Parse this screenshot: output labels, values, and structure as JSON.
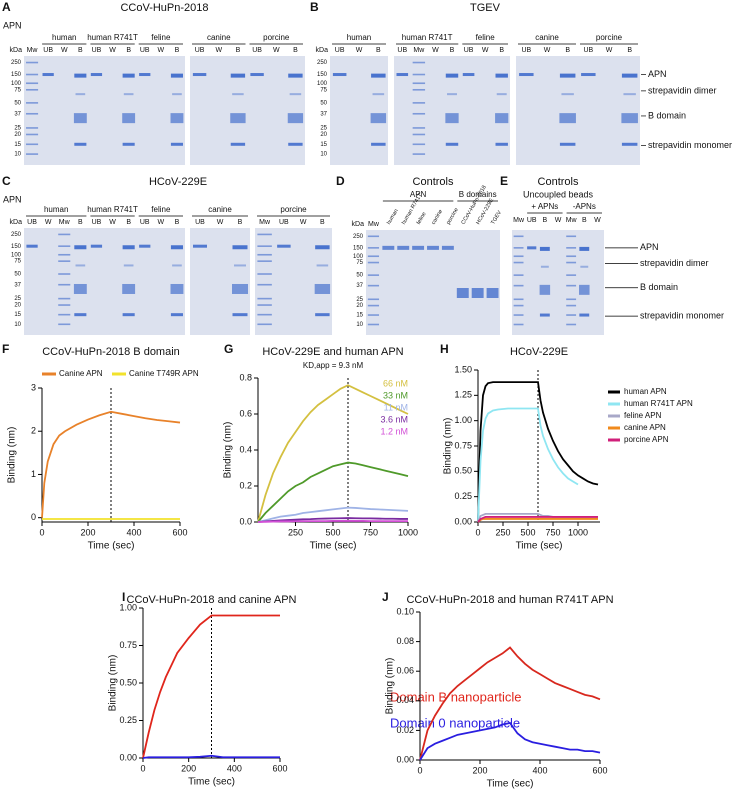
{
  "gels": [
    {
      "panel": "A",
      "title": "CCoV-HuPn-2018",
      "row_label": "APN",
      "unit": "kDa",
      "markers": [
        "250",
        "150",
        "100",
        "75",
        "50",
        "37",
        "25",
        "20",
        "15",
        "10"
      ],
      "blocks": [
        {
          "groups": [
            {
              "lanes": [
                "Mw"
              ]
            },
            {
              "label": "human",
              "lanes": [
                "UB",
                "W",
                "B"
              ]
            },
            {
              "label": "human R741T",
              "lanes": [
                "UB",
                "W",
                "B"
              ]
            },
            {
              "label": "feline",
              "lanes": [
                "UB",
                "W",
                "B"
              ]
            }
          ]
        },
        {
          "groups": [
            {
              "label": "canine",
              "lanes": [
                "UB",
                "W",
                "B"
              ]
            },
            {
              "label": "porcine",
              "lanes": [
                "UB",
                "W",
                "B"
              ]
            }
          ]
        }
      ]
    },
    {
      "panel": "B",
      "title": "TGEV",
      "unit": "kDa",
      "markers": [
        "250",
        "150",
        "100",
        "75",
        "50",
        "37",
        "25",
        "20",
        "15",
        "10"
      ],
      "blocks": [
        {
          "groups": [
            {
              "label": "human",
              "lanes": [
                "UB",
                "W",
                "B"
              ]
            }
          ]
        },
        {
          "groups": [
            {
              "label": "human R741T",
              "lanes": [
                "UB",
                "Mw",
                "W",
                "B"
              ]
            },
            {
              "label": "feline",
              "lanes": [
                "UB",
                "W",
                "B"
              ]
            }
          ]
        },
        {
          "groups": [
            {
              "label": "canine",
              "lanes": [
                "UB",
                "W",
                "B"
              ]
            },
            {
              "label": "porcine",
              "lanes": [
                "UB",
                "W",
                "B"
              ]
            }
          ]
        }
      ],
      "annotations": [
        "APN",
        "strepavidin dimer",
        "B domain",
        "strepavidin monomer"
      ]
    },
    {
      "panel": "C",
      "title": "HCoV-229E",
      "row_label": "APN",
      "unit": "kDa",
      "markers": [
        "250",
        "150",
        "100",
        "75",
        "50",
        "37",
        "25",
        "20",
        "15",
        "10"
      ],
      "blocks": [
        {
          "groups": [
            {
              "label": "human",
              "lanes": [
                "UB",
                "W",
                "Mw",
                "B"
              ]
            },
            {
              "label": "human R741T",
              "lanes": [
                "UB",
                "W",
                "B"
              ]
            },
            {
              "label": "feline",
              "lanes": [
                "UB",
                "W",
                "B"
              ]
            }
          ]
        },
        {
          "groups": [
            {
              "label": "canine",
              "lanes": [
                "UB",
                "W",
                "B"
              ]
            }
          ]
        },
        {
          "groups": [
            {
              "label": "porcine",
              "lanes": [
                "Mw",
                "UB",
                "W",
                "B"
              ]
            }
          ]
        }
      ]
    },
    {
      "panel": "D",
      "title": "Controls",
      "unit": "kDa",
      "markers": [
        "250",
        "150",
        "100",
        "75",
        "50",
        "37",
        "25",
        "20",
        "15",
        "10"
      ],
      "blocks": [
        {
          "groups": [
            {
              "lanes": [
                "Mw"
              ]
            },
            {
              "label": "APN",
              "lanes": [
                "human",
                "human R741T",
                "feline",
                "canine",
                "porcine"
              ]
            },
            {
              "label": "B domains",
              "lanes": [
                "CCoV-HuPn-2018",
                "HCoV-229E",
                "TGEV"
              ]
            }
          ]
        }
      ]
    },
    {
      "panel": "E",
      "title": "Controls",
      "subtitle": "Uncoupled beads",
      "blocks": [
        {
          "groups": [
            {
              "lanes": [
                "Mw"
              ]
            },
            {
              "label": "+ APNs",
              "lanes": [
                "UB",
                "B",
                "W"
              ]
            },
            {
              "label": "-APNs",
              "lanes": [
                "Mw",
                "B",
                "W"
              ]
            }
          ]
        }
      ],
      "annotations": [
        "APN",
        "strepavidin dimer",
        "B domain",
        "strepavidin monomer"
      ]
    }
  ],
  "chart_data": [
    {
      "type": "line",
      "panel": "F",
      "title": "CCoV-HuPn-2018 B domain",
      "x_label": "Time (sec)",
      "y_label": "Binding (nm)",
      "x": [
        0,
        10,
        25,
        50,
        75,
        100,
        150,
        200,
        250,
        300,
        350,
        400,
        450,
        500,
        550,
        600
      ],
      "series": [
        {
          "name": "Canine APN",
          "color": "#e8822a",
          "values": [
            0,
            0.8,
            1.3,
            1.7,
            1.9,
            2.0,
            2.15,
            2.27,
            2.37,
            2.45,
            2.4,
            2.35,
            2.3,
            2.26,
            2.23,
            2.2
          ]
        },
        {
          "name": "Canine T749R APN",
          "color": "#f2e22c",
          "values": [
            -0.03,
            -0.03,
            -0.03,
            -0.03,
            -0.03,
            -0.03,
            -0.03,
            -0.03,
            -0.03,
            -0.03,
            -0.03,
            -0.03,
            -0.03,
            -0.03,
            -0.03,
            -0.03
          ]
        }
      ],
      "xlim": [
        0,
        600
      ],
      "xticks": [
        0,
        200,
        400,
        600
      ],
      "ylim": [
        -0.1,
        3
      ],
      "yticks": [
        0,
        1,
        2,
        3
      ],
      "vline": 300,
      "legend": "top"
    },
    {
      "type": "line",
      "panel": "G",
      "title": "HCoV-229E and human APN",
      "annotation": "KD,app = 9.3 nM",
      "x_label": "Time (sec)",
      "y_label": "Binding (nm)",
      "x": [
        0,
        50,
        100,
        150,
        200,
        250,
        300,
        350,
        400,
        450,
        500,
        550,
        600,
        650,
        700,
        750,
        800,
        850,
        900,
        950,
        1000
      ],
      "series": [
        {
          "name": "66 nM",
          "color": "#d4c040",
          "values": [
            0,
            0.15,
            0.27,
            0.36,
            0.44,
            0.5,
            0.56,
            0.61,
            0.65,
            0.68,
            0.71,
            0.74,
            0.76,
            0.74,
            0.72,
            0.7,
            0.68,
            0.66,
            0.64,
            0.62,
            0.6
          ]
        },
        {
          "name": "33 nM",
          "color": "#4f9a2a",
          "values": [
            0,
            0.05,
            0.09,
            0.13,
            0.17,
            0.2,
            0.22,
            0.25,
            0.27,
            0.29,
            0.31,
            0.32,
            0.33,
            0.325,
            0.315,
            0.305,
            0.295,
            0.285,
            0.275,
            0.265,
            0.255
          ]
        },
        {
          "name": "11 nM",
          "color": "#9fb3e6",
          "values": [
            0,
            0.01,
            0.02,
            0.03,
            0.035,
            0.04,
            0.05,
            0.055,
            0.06,
            0.065,
            0.07,
            0.075,
            0.08,
            0.078,
            0.075,
            0.072,
            0.07,
            0.068,
            0.066,
            0.064,
            0.062
          ]
        },
        {
          "name": "3.6 nM",
          "color": "#7a2aa0",
          "values": [
            0,
            0.003,
            0.006,
            0.009,
            0.011,
            0.013,
            0.015,
            0.016,
            0.018,
            0.019,
            0.02,
            0.021,
            0.022,
            0.021,
            0.02,
            0.02,
            0.019,
            0.018,
            0.018,
            0.017,
            0.017
          ]
        },
        {
          "name": "1.2 nM",
          "color": "#d24fd6",
          "values": [
            0,
            0.001,
            0.002,
            0.003,
            0.003,
            0.004,
            0.004,
            0.005,
            0.005,
            0.005,
            0.006,
            0.006,
            0.006,
            0.006,
            0.006,
            0.005,
            0.005,
            0.005,
            0.005,
            0.005,
            0.005
          ]
        }
      ],
      "xlim": [
        0,
        1000
      ],
      "xticks": [
        250,
        500,
        750,
        1000
      ],
      "ylim": [
        0,
        0.8
      ],
      "yticks": [
        {
          "value": 0,
          "label": "0.0"
        },
        0.2,
        0.4,
        0.6,
        0.8
      ],
      "vline": 600,
      "legend": "upper right text"
    },
    {
      "type": "line",
      "panel": "H",
      "title": "HCoV-229E",
      "x_label": "Time (sec)",
      "y_label": "Binding (nm)",
      "x": [
        0,
        25,
        50,
        75,
        100,
        150,
        200,
        300,
        400,
        500,
        600,
        625,
        650,
        700,
        750,
        800,
        850,
        900,
        950,
        1000,
        1050,
        1100,
        1150,
        1200
      ],
      "series": [
        {
          "name": "human APN",
          "color": "#000000",
          "values": [
            0,
            0.9,
            1.25,
            1.34,
            1.37,
            1.38,
            1.38,
            1.38,
            1.38,
            1.38,
            1.38,
            1.2,
            1.08,
            0.92,
            0.8,
            0.7,
            0.62,
            0.56,
            0.5,
            0.46,
            0.43,
            0.4,
            0.38,
            0.37
          ]
        },
        {
          "name": "human R741T APN",
          "color": "#8fe6f2",
          "values": [
            0,
            0.6,
            0.9,
            1.02,
            1.07,
            1.1,
            1.11,
            1.12,
            1.12,
            1.12,
            1.12,
            0.95,
            0.85,
            0.72,
            0.62,
            0.54,
            0.48,
            0.43,
            0.4,
            0.37,
            null,
            null,
            null,
            null
          ]
        },
        {
          "name": "feline APN",
          "color": "#a8a8c8",
          "values": [
            0,
            0.06,
            0.07,
            0.08,
            0.08,
            0.08,
            0.08,
            0.08,
            0.08,
            0.08,
            0.08,
            0.07,
            0.06,
            0.06,
            0.05,
            0.05,
            0.05,
            0.05,
            0.05,
            0.05,
            0.05,
            0.05,
            0.05,
            0.05
          ]
        },
        {
          "name": "canine APN",
          "color": "#f08a1c",
          "values": [
            0,
            0.02,
            0.03,
            0.03,
            0.03,
            0.03,
            0.03,
            0.03,
            0.03,
            0.03,
            0.03,
            0.03,
            0.03,
            0.03,
            0.03,
            0.03,
            0.03,
            0.03,
            0.03,
            0.03,
            0.03,
            0.03,
            0.03,
            0.03
          ]
        },
        {
          "name": "porcine APN",
          "color": "#d0207a",
          "values": [
            0,
            0.03,
            0.04,
            0.05,
            0.05,
            0.05,
            0.05,
            0.05,
            0.05,
            0.05,
            0.05,
            0.05,
            0.05,
            0.05,
            0.05,
            0.05,
            0.05,
            0.05,
            0.05,
            0.05,
            0.05,
            0.05,
            0.05,
            0.05
          ]
        }
      ],
      "xlim": [
        0,
        1220
      ],
      "xticks": [
        0,
        250,
        500,
        750,
        1000
      ],
      "ylim": [
        0,
        1.5
      ],
      "yticks": [
        {
          "value": 0,
          "label": "0.00"
        },
        0.25,
        {
          "value": 0.5,
          "label": "0.50"
        },
        0.75,
        {
          "value": 1,
          "label": "1.00"
        },
        1.25,
        {
          "value": 1.5,
          "label": "1.50"
        }
      ],
      "vline": 600,
      "legend": "right"
    },
    {
      "type": "line",
      "panel": "I",
      "title": "CCoV-HuPn-2018 and canine APN",
      "x_label": "Time (sec)",
      "y_label": "Binding (nm)",
      "x": [
        0,
        25,
        50,
        75,
        100,
        150,
        200,
        250,
        300,
        350,
        400,
        450,
        500,
        550,
        600
      ],
      "series": [
        {
          "name": "Domain B nanoparticle",
          "color": "#e0261c",
          "values": [
            0,
            0.17,
            0.32,
            0.44,
            0.54,
            0.7,
            0.8,
            0.89,
            0.95,
            0.95,
            0.95,
            0.95,
            0.95,
            0.95,
            0.95
          ]
        },
        {
          "name": "Domain 0 nanoparticle",
          "color": "#2a1ee0",
          "values": [
            0,
            0.005,
            0.005,
            0.005,
            0.005,
            0.005,
            0.005,
            0.008,
            0.015,
            0.005,
            0.005,
            0.005,
            0.005,
            0.005,
            0.005
          ]
        }
      ],
      "xlim": [
        0,
        600
      ],
      "xticks": [
        0,
        200,
        400,
        600
      ],
      "ylim": [
        0,
        1
      ],
      "yticks": [
        {
          "value": 0,
          "label": "0.00"
        },
        0.25,
        {
          "value": 0.5,
          "label": "0.50"
        },
        0.75,
        {
          "value": 1,
          "label": "1.00"
        }
      ],
      "vline": 300,
      "legend": "outside text"
    },
    {
      "type": "line",
      "panel": "J",
      "title": "CCoV-HuPn-2018 and human R741T APN",
      "x_label": "Time (sec)",
      "y_label": "Binding (nm)",
      "x": [
        0,
        25,
        50,
        75,
        100,
        125,
        150,
        175,
        200,
        225,
        250,
        275,
        300,
        325,
        350,
        375,
        400,
        425,
        450,
        475,
        500,
        525,
        550,
        575,
        600
      ],
      "series": [
        {
          "color": "#d8281e",
          "values": [
            0,
            0.02,
            0.03,
            0.038,
            0.045,
            0.05,
            0.054,
            0.058,
            0.062,
            0.066,
            0.069,
            0.072,
            0.076,
            0.07,
            0.065,
            0.061,
            0.058,
            0.055,
            0.052,
            0.05,
            0.048,
            0.046,
            0.044,
            0.043,
            0.041
          ]
        },
        {
          "color": "#2a1ee0",
          "values": [
            0,
            0.008,
            0.011,
            0.013,
            0.015,
            0.017,
            0.018,
            0.019,
            0.02,
            0.021,
            0.022,
            0.024,
            0.025,
            0.018,
            0.014,
            0.012,
            0.011,
            0.01,
            0.009,
            0.008,
            0.007,
            0.007,
            0.006,
            0.006,
            0.005
          ]
        }
      ],
      "xlim": [
        0,
        600
      ],
      "xticks": [
        0,
        200,
        400,
        600
      ],
      "ylim": [
        0,
        0.1
      ],
      "yticks": [
        {
          "value": 0,
          "label": "0.00"
        },
        0.02,
        0.04,
        0.06,
        0.08,
        {
          "value": 0.1,
          "label": "0.10"
        }
      ]
    }
  ]
}
